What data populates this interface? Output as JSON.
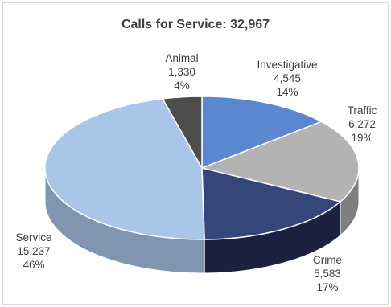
{
  "chart_data": {
    "type": "pie",
    "title": "Calls for Service: 32,967",
    "slices": [
      {
        "name": "Investigative",
        "value": 4545,
        "value_label": "4,545",
        "percent_label": "14%",
        "color": "#5b87cf",
        "side_color": "#3d5f99"
      },
      {
        "name": "Traffic",
        "value": 6272,
        "value_label": "6,272",
        "percent_label": "19%",
        "color": "#b3b3b3",
        "side_color": "#7f7f7f"
      },
      {
        "name": "Crime",
        "value": 5583,
        "value_label": "5,583",
        "percent_label": "17%",
        "color": "#34467a",
        "side_color": "#1a2240"
      },
      {
        "name": "Service",
        "value": 15237,
        "value_label": "15,237",
        "percent_label": "46%",
        "color": "#a9c6e8",
        "side_color": "#7f95b0"
      },
      {
        "name": "Animal",
        "value": 1330,
        "value_label": "1,330",
        "percent_label": "4%",
        "color": "#4d4d4d",
        "side_color": "#2e2e2e"
      }
    ]
  }
}
